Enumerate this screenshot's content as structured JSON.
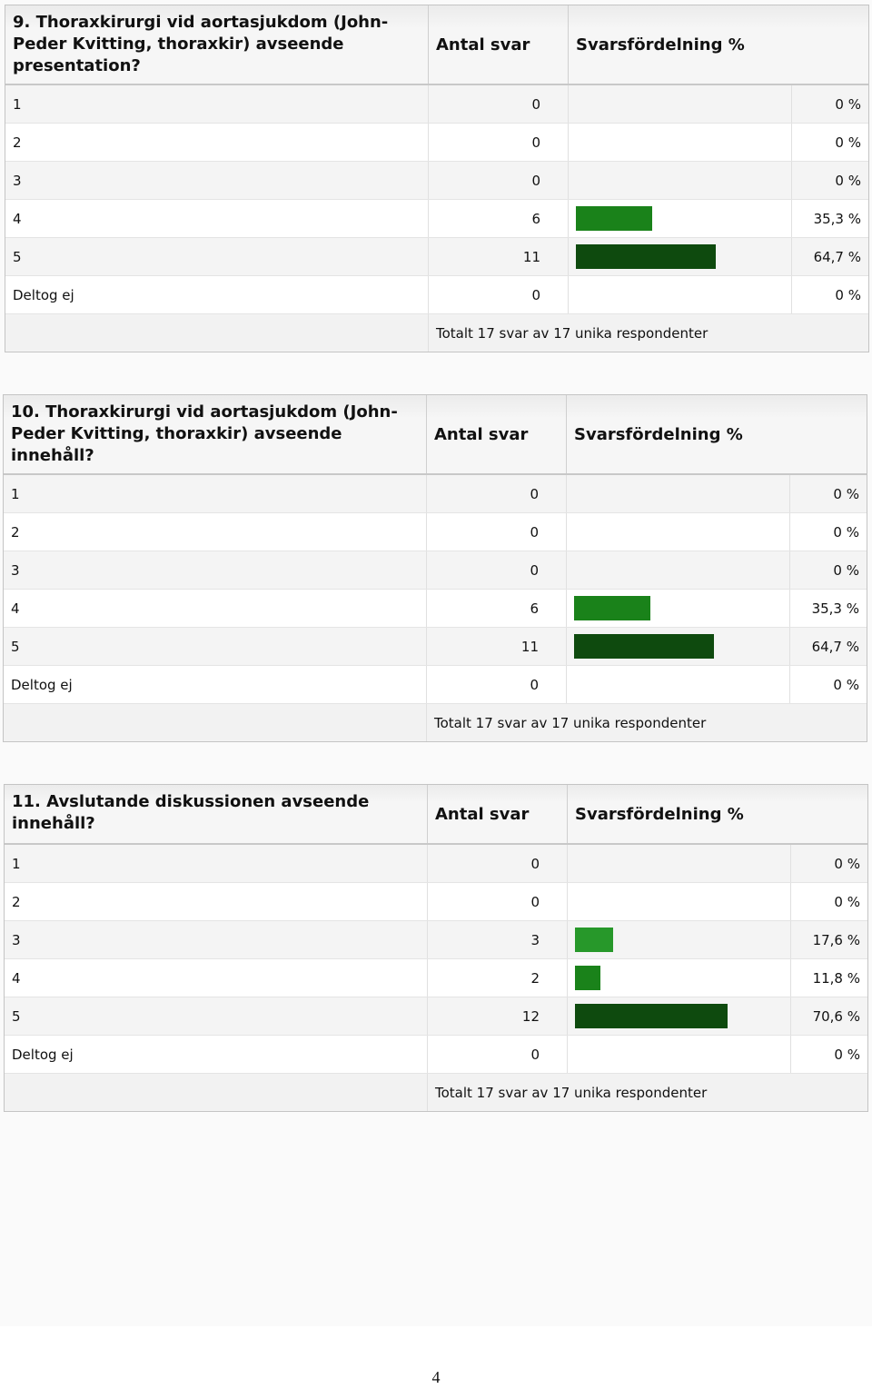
{
  "columns": {
    "count": "Antal svar",
    "distribution": "Svarsfördelning %"
  },
  "tables": [
    {
      "question": "9. Thoraxkirurgi vid aortasjukdom (John-Peder Kvitting, thoraxkir) avseende presentation?",
      "rows": [
        {
          "label": "1",
          "count": "0",
          "percent": "0 %",
          "value": 0,
          "color": ""
        },
        {
          "label": "2",
          "count": "0",
          "percent": "0 %",
          "value": 0,
          "color": ""
        },
        {
          "label": "3",
          "count": "0",
          "percent": "0 %",
          "value": 0,
          "color": ""
        },
        {
          "label": "4",
          "count": "6",
          "percent": "35,3 %",
          "value": 35.3,
          "color": "#1a821a"
        },
        {
          "label": "5",
          "count": "11",
          "percent": "64,7 %",
          "value": 64.7,
          "color": "#0e4a0e"
        },
        {
          "label": "Deltog ej",
          "count": "0",
          "percent": "0 %",
          "value": 0,
          "color": ""
        }
      ],
      "total": "Totalt 17 svar av 17 unika respondenter"
    },
    {
      "question": "10. Thoraxkirurgi vid aortasjukdom (John-Peder Kvitting, thoraxkir) avseende innehåll?",
      "rows": [
        {
          "label": "1",
          "count": "0",
          "percent": "0 %",
          "value": 0,
          "color": ""
        },
        {
          "label": "2",
          "count": "0",
          "percent": "0 %",
          "value": 0,
          "color": ""
        },
        {
          "label": "3",
          "count": "0",
          "percent": "0 %",
          "value": 0,
          "color": ""
        },
        {
          "label": "4",
          "count": "6",
          "percent": "35,3 %",
          "value": 35.3,
          "color": "#1a821a"
        },
        {
          "label": "5",
          "count": "11",
          "percent": "64,7 %",
          "value": 64.7,
          "color": "#0e4a0e"
        },
        {
          "label": "Deltog ej",
          "count": "0",
          "percent": "0 %",
          "value": 0,
          "color": ""
        }
      ],
      "total": "Totalt 17 svar av 17 unika respondenter"
    },
    {
      "question": "11. Avslutande diskussionen avseende innehåll?",
      "rows": [
        {
          "label": "1",
          "count": "0",
          "percent": "0 %",
          "value": 0,
          "color": ""
        },
        {
          "label": "2",
          "count": "0",
          "percent": "0 %",
          "value": 0,
          "color": ""
        },
        {
          "label": "3",
          "count": "3",
          "percent": "17,6 %",
          "value": 17.6,
          "color": "#27982a"
        },
        {
          "label": "4",
          "count": "2",
          "percent": "11,8 %",
          "value": 11.8,
          "color": "#1a821a"
        },
        {
          "label": "5",
          "count": "12",
          "percent": "70,6 %",
          "value": 70.6,
          "color": "#0e4a0e"
        },
        {
          "label": "Deltog ej",
          "count": "0",
          "percent": "0 %",
          "value": 0,
          "color": ""
        }
      ],
      "total": "Totalt 17 svar av 17 unika respondenter"
    }
  ],
  "page_number": "4"
}
